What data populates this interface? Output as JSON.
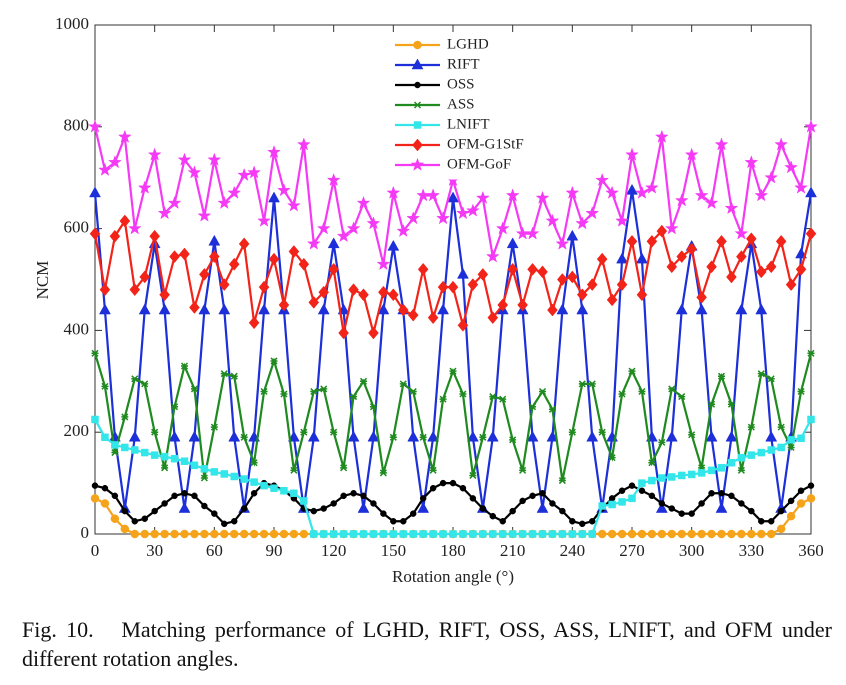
{
  "chart_data": {
    "type": "line",
    "x": [
      0,
      5,
      10,
      15,
      20,
      25,
      30,
      35,
      40,
      45,
      50,
      55,
      60,
      65,
      70,
      75,
      80,
      85,
      90,
      95,
      100,
      105,
      110,
      115,
      120,
      125,
      130,
      135,
      140,
      145,
      150,
      155,
      160,
      165,
      170,
      175,
      180,
      185,
      190,
      195,
      200,
      205,
      210,
      215,
      220,
      225,
      230,
      235,
      240,
      245,
      250,
      255,
      260,
      265,
      270,
      275,
      280,
      285,
      290,
      295,
      300,
      305,
      310,
      315,
      320,
      325,
      330,
      335,
      340,
      345,
      350,
      355,
      360
    ],
    "series": [
      {
        "name": "LGHD",
        "color": "#f5a31a",
        "marker": "circle",
        "values": [
          70,
          60,
          30,
          10,
          0,
          0,
          0,
          0,
          0,
          0,
          0,
          0,
          0,
          0,
          0,
          0,
          0,
          0,
          0,
          0,
          0,
          0,
          0,
          0,
          0,
          0,
          0,
          0,
          0,
          0,
          0,
          0,
          0,
          0,
          0,
          0,
          0,
          0,
          0,
          0,
          0,
          0,
          0,
          0,
          0,
          0,
          0,
          0,
          0,
          0,
          0,
          0,
          0,
          0,
          0,
          0,
          0,
          0,
          0,
          0,
          0,
          0,
          0,
          0,
          0,
          0,
          0,
          0,
          0,
          10,
          35,
          60,
          70
        ]
      },
      {
        "name": "RIFT",
        "color": "#1c2fd8",
        "marker": "triangle",
        "values": [
          670,
          440,
          190,
          50,
          190,
          440,
          570,
          440,
          190,
          50,
          190,
          440,
          575,
          440,
          190,
          50,
          190,
          440,
          660,
          440,
          190,
          50,
          190,
          440,
          570,
          440,
          190,
          50,
          190,
          440,
          565,
          440,
          190,
          50,
          190,
          440,
          660,
          510,
          190,
          50,
          190,
          440,
          570,
          440,
          190,
          50,
          190,
          440,
          585,
          440,
          190,
          50,
          190,
          540,
          675,
          540,
          190,
          50,
          190,
          440,
          565,
          440,
          190,
          50,
          190,
          440,
          570,
          440,
          190,
          50,
          190,
          550,
          670
        ]
      },
      {
        "name": "OSS",
        "color": "#000000",
        "marker": "dot",
        "values": [
          95,
          90,
          75,
          45,
          25,
          30,
          45,
          60,
          75,
          80,
          75,
          55,
          40,
          20,
          25,
          50,
          80,
          100,
          95,
          85,
          70,
          50,
          45,
          50,
          60,
          75,
          80,
          75,
          60,
          40,
          25,
          25,
          40,
          70,
          90,
          100,
          100,
          90,
          70,
          50,
          35,
          25,
          45,
          65,
          75,
          80,
          60,
          45,
          25,
          20,
          25,
          50,
          70,
          85,
          95,
          85,
          75,
          60,
          50,
          40,
          40,
          60,
          80,
          80,
          75,
          60,
          45,
          25,
          25,
          45,
          65,
          85,
          95
        ]
      },
      {
        "name": "ASS",
        "color": "#1f8a1f",
        "marker": "asterisk",
        "values": [
          355,
          290,
          160,
          230,
          305,
          295,
          200,
          130,
          250,
          330,
          285,
          110,
          210,
          315,
          310,
          190,
          140,
          280,
          340,
          275,
          125,
          200,
          280,
          285,
          200,
          130,
          270,
          300,
          250,
          120,
          190,
          295,
          280,
          190,
          125,
          265,
          320,
          275,
          115,
          190,
          270,
          265,
          185,
          125,
          250,
          280,
          245,
          105,
          200,
          295,
          295,
          200,
          150,
          275,
          320,
          280,
          140,
          180,
          285,
          270,
          195,
          130,
          255,
          310,
          255,
          125,
          210,
          315,
          305,
          210,
          170,
          280,
          355
        ]
      },
      {
        "name": "LNIFT",
        "color": "#33e6ea",
        "marker": "square",
        "values": [
          225,
          190,
          175,
          170,
          165,
          160,
          155,
          152,
          148,
          143,
          135,
          128,
          122,
          118,
          113,
          108,
          102,
          95,
          90,
          85,
          80,
          65,
          0,
          0,
          0,
          0,
          0,
          0,
          0,
          0,
          0,
          0,
          0,
          0,
          0,
          0,
          0,
          0,
          0,
          0,
          0,
          0,
          0,
          0,
          0,
          0,
          0,
          0,
          0,
          0,
          0,
          55,
          58,
          63,
          70,
          100,
          105,
          110,
          112,
          115,
          117,
          120,
          125,
          130,
          140,
          150,
          155,
          160,
          165,
          170,
          185,
          188,
          225
        ]
      },
      {
        "name": "OFM-G1StF",
        "color": "#f22318",
        "marker": "diamond",
        "values": [
          590,
          480,
          585,
          615,
          480,
          505,
          585,
          470,
          545,
          550,
          445,
          510,
          545,
          490,
          530,
          570,
          415,
          485,
          540,
          450,
          555,
          530,
          455,
          475,
          520,
          395,
          480,
          470,
          395,
          475,
          470,
          440,
          430,
          520,
          425,
          485,
          485,
          410,
          490,
          510,
          425,
          450,
          520,
          450,
          520,
          515,
          440,
          500,
          505,
          470,
          490,
          540,
          460,
          490,
          575,
          470,
          575,
          595,
          525,
          545,
          560,
          465,
          525,
          575,
          505,
          545,
          580,
          515,
          525,
          575,
          490,
          520,
          590
        ]
      },
      {
        "name": "OFM-GoF",
        "color": "#f53af5",
        "marker": "star",
        "values": [
          800,
          715,
          730,
          780,
          600,
          680,
          745,
          630,
          650,
          735,
          710,
          625,
          735,
          650,
          670,
          705,
          710,
          615,
          750,
          675,
          645,
          765,
          570,
          600,
          695,
          585,
          600,
          650,
          610,
          530,
          670,
          595,
          620,
          665,
          665,
          620,
          695,
          630,
          635,
          660,
          545,
          600,
          665,
          590,
          590,
          660,
          615,
          570,
          670,
          610,
          630,
          695,
          670,
          615,
          745,
          670,
          680,
          780,
          600,
          655,
          745,
          665,
          650,
          765,
          640,
          590,
          730,
          665,
          700,
          765,
          720,
          680,
          800
        ]
      }
    ],
    "xlabel": "Rotation angle (°)",
    "ylabel": "NCM",
    "xlim": [
      0,
      360
    ],
    "xticks": [
      0,
      30,
      60,
      90,
      120,
      150,
      180,
      210,
      240,
      270,
      300,
      330,
      360
    ],
    "ylim": [
      0,
      1000
    ],
    "yticks": [
      0,
      200,
      400,
      600,
      800,
      1000
    ],
    "legend": "top"
  },
  "caption": "Fig. 10.   Matching performance of LGHD, RIFT, OSS, ASS, LNIFT, and OFM under different rotation angles."
}
